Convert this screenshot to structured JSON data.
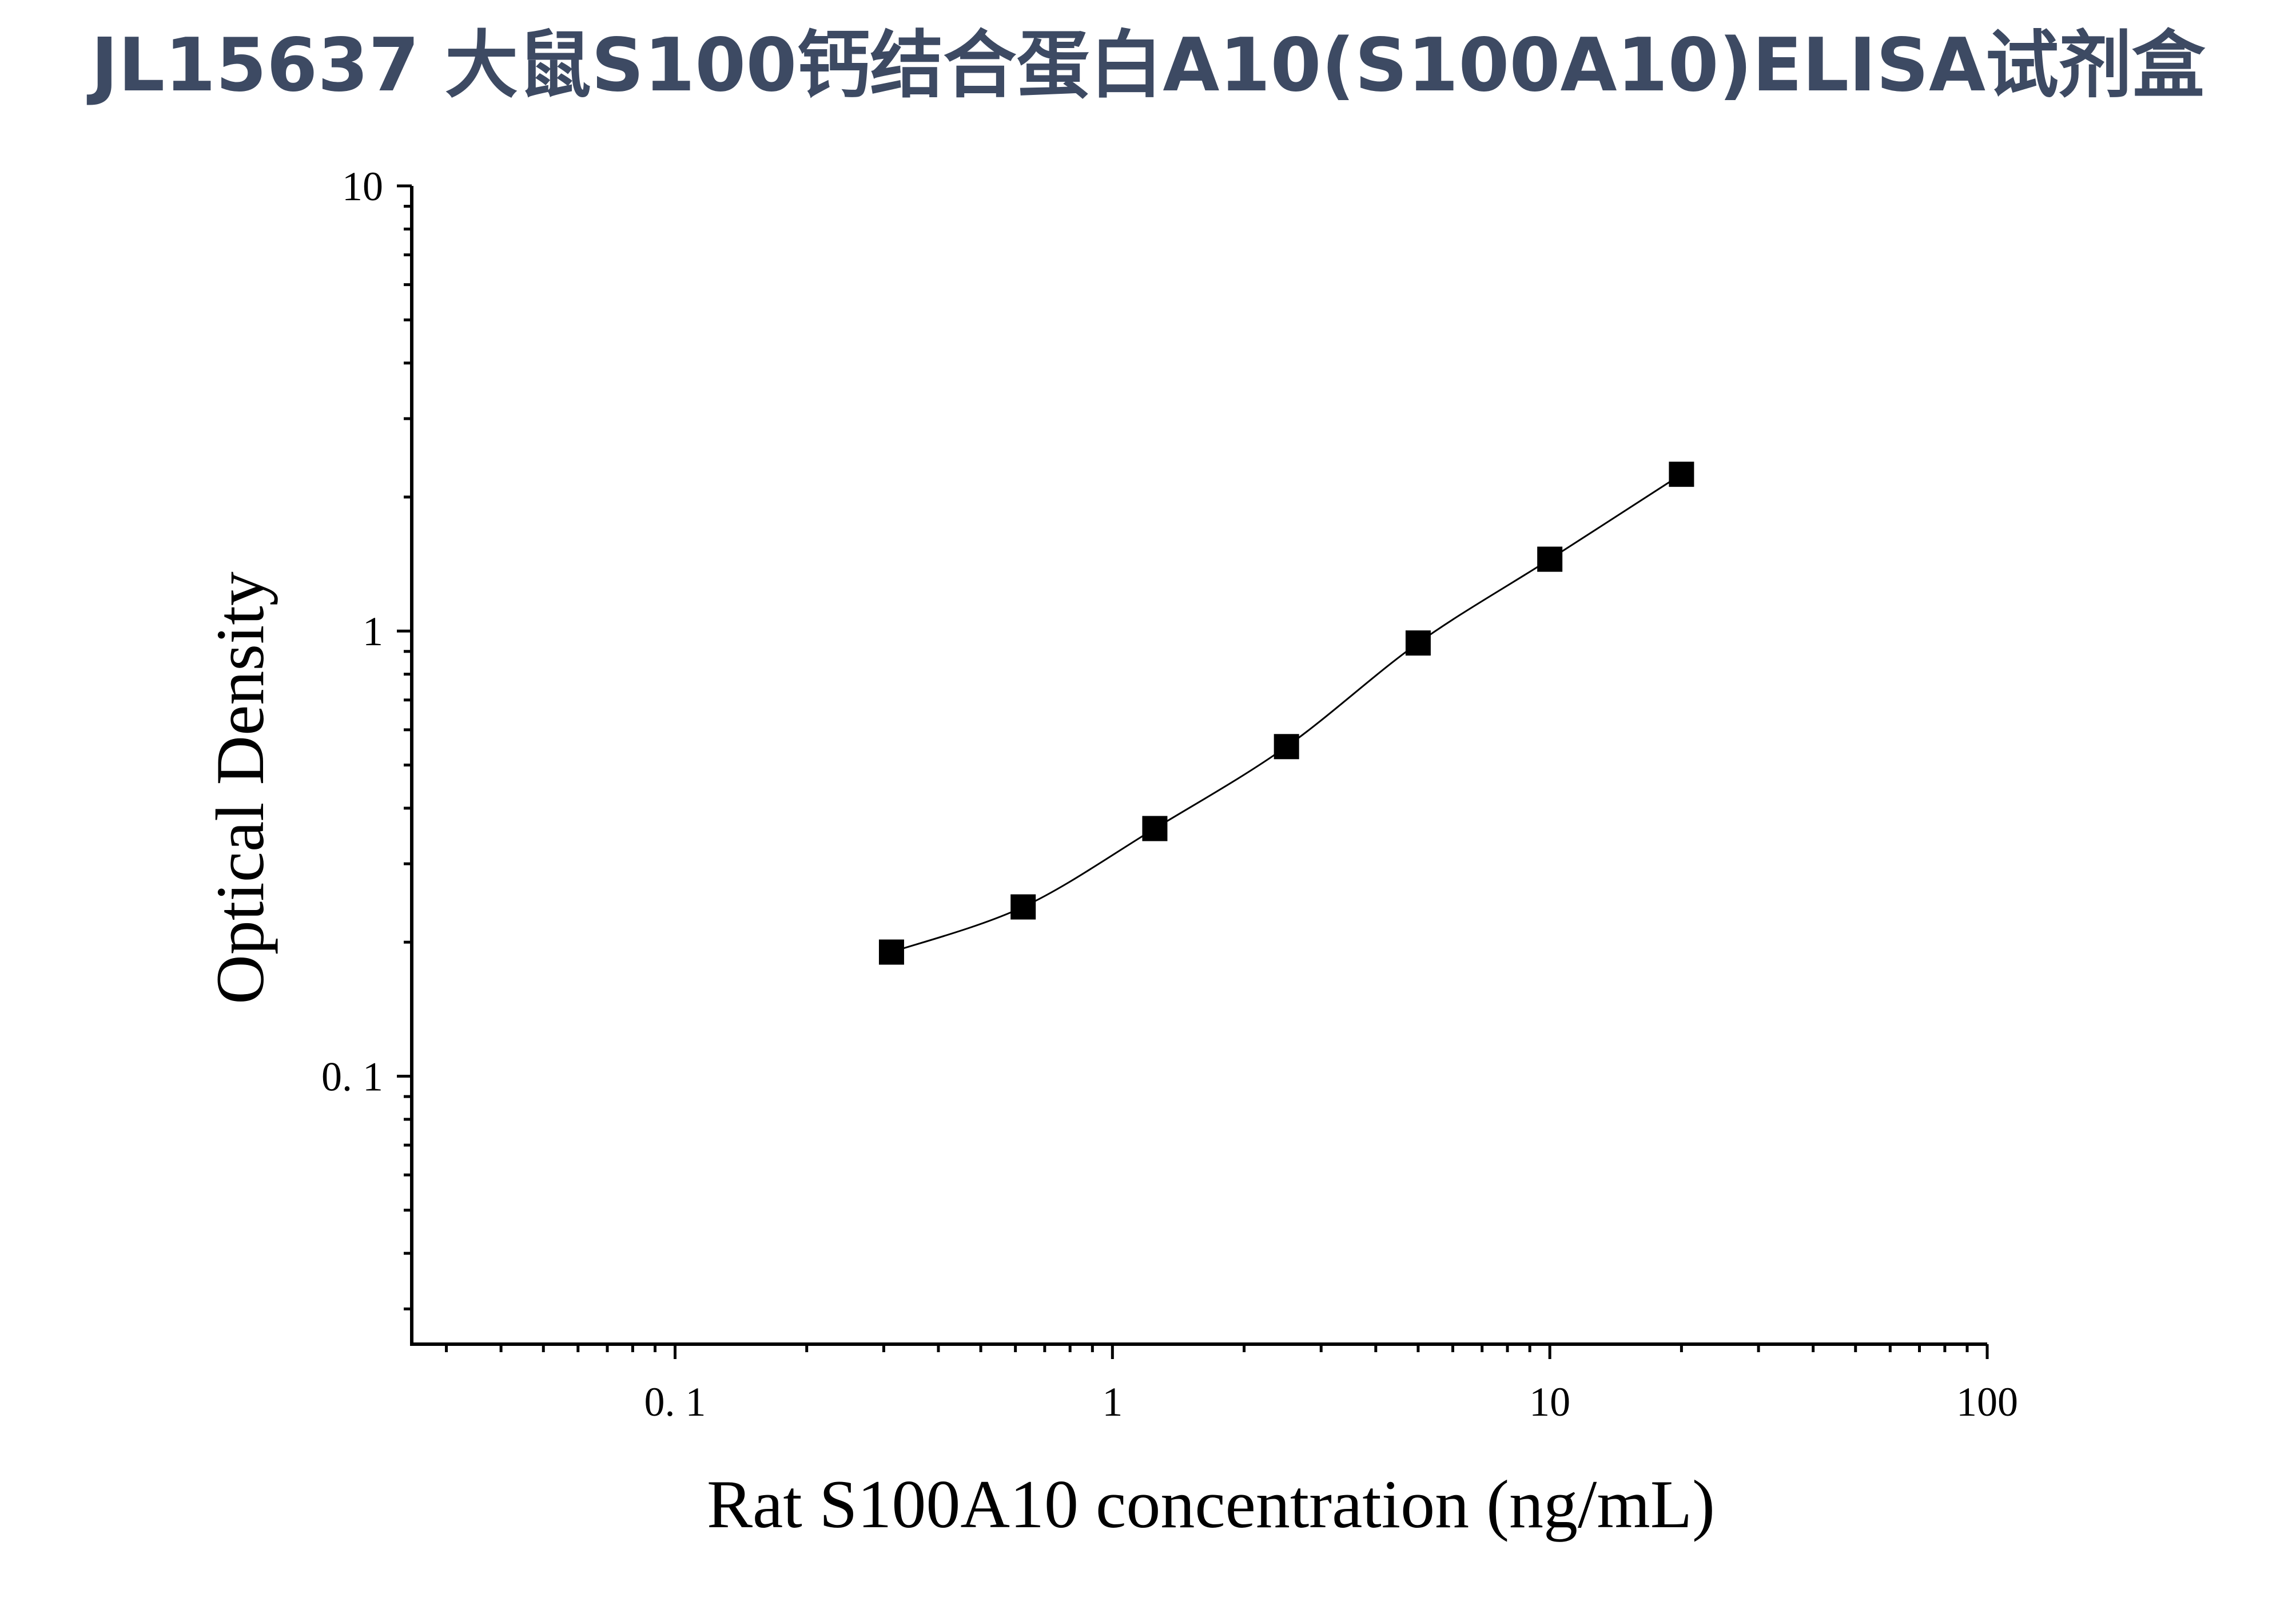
{
  "chart_data": {
    "type": "scatter",
    "title": "JL15637 大鼠S100钙结合蛋白A10(S100A10)ELISA试剂盒",
    "xlabel": "Rat S100A10 concentration (ng/mL)",
    "ylabel": "Optical Density",
    "x_scale": "log",
    "y_scale": "log",
    "xlim": [
      0.025,
      100
    ],
    "ylim": [
      0.025,
      10
    ],
    "x_ticks": [
      {
        "value": 0.1,
        "label": "0. 1"
      },
      {
        "value": 1,
        "label": "1"
      },
      {
        "value": 10,
        "label": "10"
      },
      {
        "value": 100,
        "label": "100"
      }
    ],
    "y_ticks": [
      {
        "value": 0.1,
        "label": "0. 1"
      },
      {
        "value": 1,
        "label": "1"
      },
      {
        "value": 10,
        "label": "10"
      }
    ],
    "grid": false,
    "legend": "none",
    "fit_line": true,
    "series": [
      {
        "marker": "square",
        "color": "#000000",
        "x": [
          0.3125,
          0.625,
          1.25,
          2.5,
          5,
          10,
          20
        ],
        "y": [
          0.19,
          0.24,
          0.36,
          0.55,
          0.94,
          1.45,
          2.25
        ]
      }
    ]
  }
}
